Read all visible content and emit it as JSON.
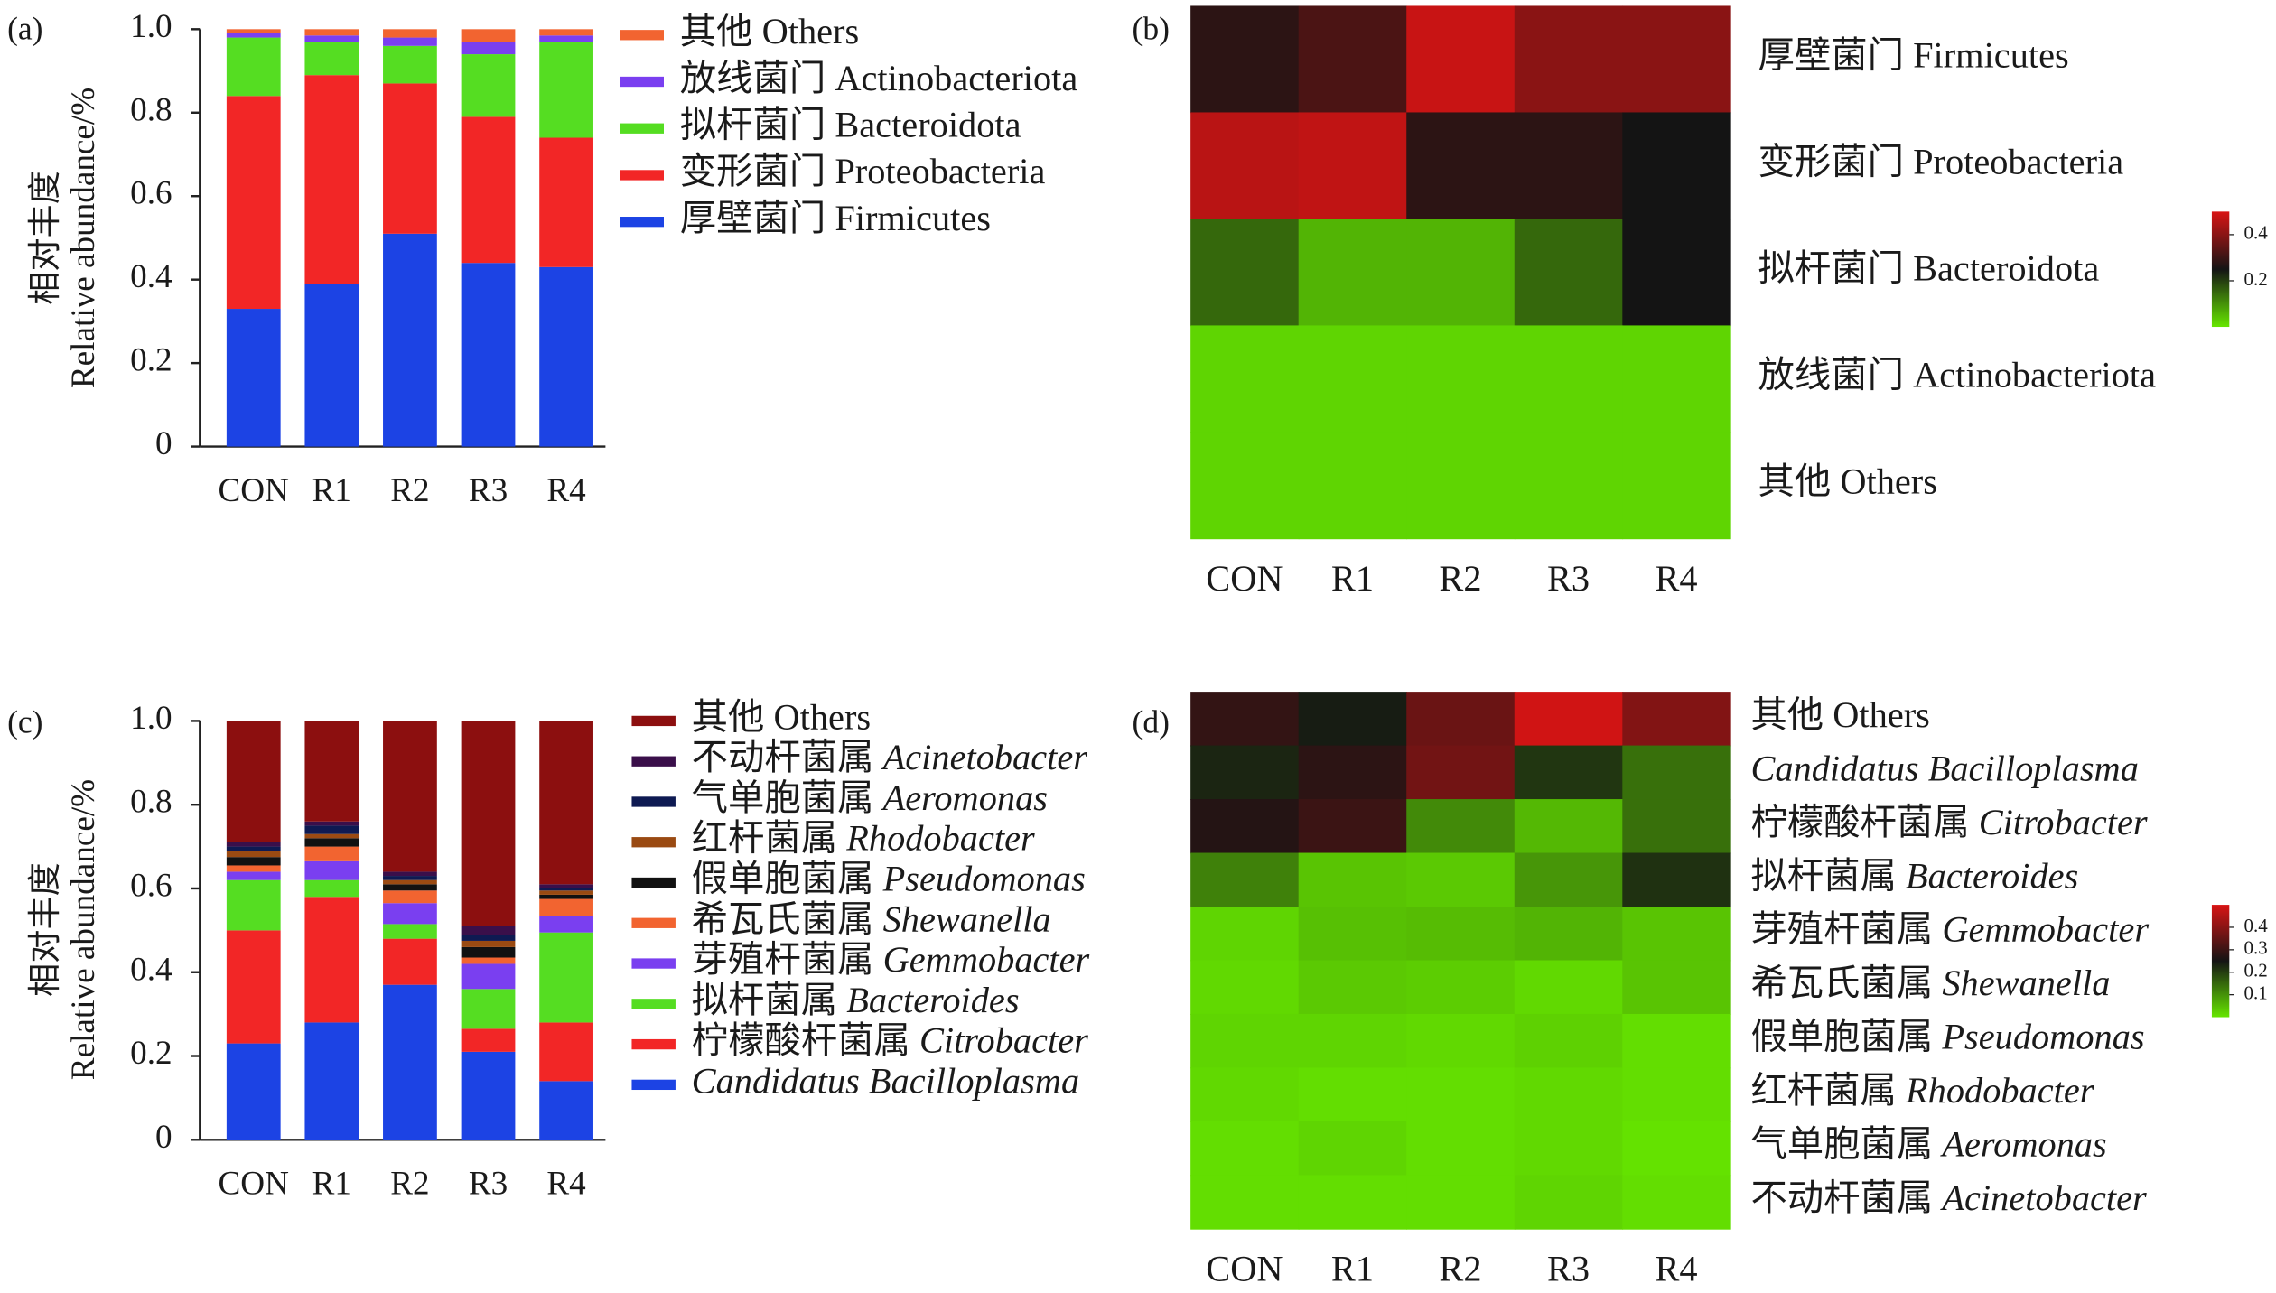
{
  "chart_data": [
    {
      "type": "stacked_bar",
      "panel_label": "(a)",
      "ylabel": [
        "相对丰度",
        "Relative abundance/%"
      ],
      "categories": [
        "CON",
        "R1",
        "R2",
        "R3",
        "R4"
      ],
      "ylim": [
        0,
        1
      ],
      "yticks": [
        0,
        0.2,
        0.4,
        0.6,
        0.8,
        {
          "value": 1,
          "label": "1.0"
        }
      ],
      "series": [
        {
          "name": "厚壁菌门 Firmicutes",
          "color": "#1c43e4",
          "values": [
            0.33,
            0.39,
            0.51,
            0.44,
            0.43
          ]
        },
        {
          "name": "变形菌门 Proteobacteria",
          "color": "#f22626",
          "values": [
            0.51,
            0.5,
            0.36,
            0.35,
            0.31
          ]
        },
        {
          "name": "拟杆菌门 Bacteroidota",
          "color": "#55dd22",
          "values": [
            0.14,
            0.08,
            0.09,
            0.15,
            0.23
          ]
        },
        {
          "name": "放线菌门 Actinobacteriota",
          "color": "#7a3ff0",
          "values": [
            0.01,
            0.015,
            0.02,
            0.03,
            0.015
          ]
        },
        {
          "name": "其他 Others",
          "color": "#f26430",
          "values": [
            0.01,
            0.015,
            0.02,
            0.03,
            0.015
          ]
        }
      ]
    },
    {
      "type": "heatmap",
      "panel_label": "(b)",
      "x": [
        "CON",
        "R1",
        "R2",
        "R3",
        "R4"
      ],
      "y": [
        "厚壁菌门 Firmicutes",
        "变形菌门 Proteobacteria",
        "拟杆菌门 Bacteroidota",
        "放线菌门 Actinobacteriota",
        "其他 Others"
      ],
      "z": [
        [
          0.28,
          0.32,
          0.48,
          0.4,
          0.4
        ],
        [
          0.46,
          0.47,
          0.28,
          0.28,
          0.25
        ],
        [
          0.15,
          0.06,
          0.06,
          0.15,
          0.25
        ],
        [
          0.02,
          0.02,
          0.02,
          0.02,
          0.02
        ],
        [
          0.02,
          0.02,
          0.02,
          0.02,
          0.02
        ]
      ],
      "zlim": [
        0,
        0.5
      ],
      "zticks": [
        0.2,
        0.4
      ],
      "colorscale": [
        "#66e600",
        "#141414",
        "#d81414"
      ]
    },
    {
      "type": "stacked_bar",
      "panel_label": "(c)",
      "ylabel": [
        "相对丰度",
        "Relative abundance/%"
      ],
      "categories": [
        "CON",
        "R1",
        "R2",
        "R3",
        "R4"
      ],
      "ylim": [
        0,
        1
      ],
      "yticks": [
        0,
        0.2,
        0.4,
        0.6,
        0.8,
        {
          "value": 1,
          "label": "1.0"
        }
      ],
      "series": [
        {
          "name": "Candidatus Bacilloplasma",
          "italic": true,
          "color": "#1c43e4",
          "values": [
            0.23,
            0.28,
            0.37,
            0.21,
            0.14
          ]
        },
        {
          "name": "柠檬酸杆菌属 Citrobacter",
          "italic": true,
          "color": "#f22626",
          "values": [
            0.27,
            0.3,
            0.11,
            0.055,
            0.14
          ]
        },
        {
          "name": "拟杆菌属 Bacteroides",
          "italic": true,
          "color": "#55dd22",
          "values": [
            0.12,
            0.04,
            0.035,
            0.095,
            0.215
          ]
        },
        {
          "name": "芽殖杆菌属 Gemmobacter",
          "italic": true,
          "color": "#7a3ff0",
          "values": [
            0.02,
            0.045,
            0.05,
            0.06,
            0.04
          ]
        },
        {
          "name": "希瓦氏菌属 Shewanella",
          "italic": true,
          "color": "#f26430",
          "values": [
            0.015,
            0.035,
            0.03,
            0.015,
            0.04
          ]
        },
        {
          "name": "假单胞菌属 Pseudomonas",
          "italic": true,
          "color": "#111111",
          "values": [
            0.02,
            0.02,
            0.015,
            0.025,
            0.01
          ]
        },
        {
          "name": "红杆菌属 Rhodobacter",
          "italic": true,
          "color": "#9a4a12",
          "values": [
            0.015,
            0.01,
            0.01,
            0.015,
            0.01
          ]
        },
        {
          "name": "气单胞菌属 Aeromonas",
          "italic": true,
          "color": "#0e1a52",
          "values": [
            0.01,
            0.02,
            0.01,
            0.015,
            0.005
          ]
        },
        {
          "name": "不动杆菌属 Acinetobacter",
          "italic": true,
          "color": "#3a0f4a",
          "values": [
            0.01,
            0.01,
            0.01,
            0.02,
            0.01
          ]
        },
        {
          "name": "其他 Others",
          "italic": false,
          "color": "#8c0f0f",
          "values": [
            0.29,
            0.24,
            0.36,
            0.49,
            0.39
          ]
        }
      ]
    },
    {
      "type": "heatmap",
      "panel_label": "(d)",
      "x": [
        "CON",
        "R1",
        "R2",
        "R3",
        "R4"
      ],
      "y": [
        "其他 Others",
        "Candidatus Bacilloplasma",
        "柠檬酸杆菌属 Citrobacter",
        "拟杆菌属 Bacteroides",
        "芽殖杆菌属 Gemmobacter",
        "希瓦氏菌属 Shewanella",
        "假单胞菌属 Pseudomonas",
        "红杆菌属 Rhodobacter",
        "气单胞菌属 Aeromonas",
        "不动杆菌属 Acinetobacter"
      ],
      "y_italic": [
        false,
        true,
        true,
        true,
        true,
        true,
        true,
        true,
        true,
        true
      ],
      "z": [
        [
          0.29,
          0.24,
          0.36,
          0.49,
          0.39
        ],
        [
          0.23,
          0.28,
          0.37,
          0.21,
          0.14
        ],
        [
          0.27,
          0.3,
          0.11,
          0.055,
          0.14
        ],
        [
          0.12,
          0.04,
          0.035,
          0.095,
          0.215
        ],
        [
          0.02,
          0.045,
          0.05,
          0.06,
          0.04
        ],
        [
          0.015,
          0.035,
          0.03,
          0.015,
          0.04
        ],
        [
          0.02,
          0.02,
          0.015,
          0.025,
          0.01
        ],
        [
          0.015,
          0.01,
          0.01,
          0.015,
          0.01
        ],
        [
          0.01,
          0.02,
          0.01,
          0.015,
          0.005
        ],
        [
          0.01,
          0.01,
          0.01,
          0.02,
          0.01
        ]
      ],
      "zlim": [
        0,
        0.5
      ],
      "zticks": [
        0.1,
        0.2,
        0.3,
        0.4
      ],
      "colorscale": [
        "#66e600",
        "#141414",
        "#d81414"
      ]
    }
  ]
}
